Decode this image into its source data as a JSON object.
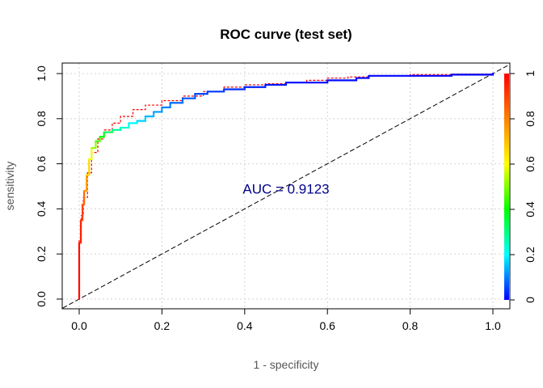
{
  "chart_data": {
    "type": "line",
    "title": "ROC curve (test set)",
    "xlabel": "1 - specificity",
    "ylabel": "sensitivity",
    "xlim": [
      0,
      1
    ],
    "ylim": [
      0,
      1
    ],
    "x_ticks": [
      "0.0",
      "0.2",
      "0.4",
      "0.6",
      "0.8",
      "1.0"
    ],
    "y_ticks": [
      "0.0",
      "0.2",
      "0.4",
      "0.6",
      "0.8",
      "1.0"
    ],
    "grid": true,
    "annotation": {
      "text": "AUC = 0.9123",
      "x": 0.5,
      "y": 0.49,
      "color": "#00008B"
    },
    "colorbar": {
      "ticks": [
        "0",
        "0.2",
        "0.4",
        "0.6",
        "0.8",
        "1"
      ],
      "placement": "right",
      "colors": [
        "#0000FF",
        "#00FFFF",
        "#00FF00",
        "#FFFF00",
        "#FF8000",
        "#FF0000"
      ]
    },
    "series": [
      {
        "style": "colored-threshold",
        "points": [
          [
            0.0,
            0.0,
            1.0
          ],
          [
            0.0,
            0.25,
            0.97
          ],
          [
            0.004,
            0.35,
            0.93
          ],
          [
            0.008,
            0.42,
            0.88
          ],
          [
            0.012,
            0.48,
            0.8
          ],
          [
            0.018,
            0.55,
            0.72
          ],
          [
            0.024,
            0.62,
            0.62
          ],
          [
            0.03,
            0.67,
            0.55
          ],
          [
            0.04,
            0.7,
            0.48
          ],
          [
            0.05,
            0.72,
            0.42
          ],
          [
            0.06,
            0.74,
            0.36
          ],
          [
            0.08,
            0.75,
            0.3
          ],
          [
            0.1,
            0.76,
            0.25
          ],
          [
            0.12,
            0.78,
            0.21
          ],
          [
            0.14,
            0.79,
            0.18
          ],
          [
            0.16,
            0.81,
            0.15
          ],
          [
            0.18,
            0.83,
            0.13
          ],
          [
            0.2,
            0.85,
            0.11
          ],
          [
            0.22,
            0.87,
            0.09
          ],
          [
            0.25,
            0.89,
            0.08
          ],
          [
            0.28,
            0.91,
            0.06
          ],
          [
            0.31,
            0.92,
            0.05
          ],
          [
            0.35,
            0.93,
            0.04
          ],
          [
            0.4,
            0.94,
            0.03
          ],
          [
            0.45,
            0.95,
            0.02
          ],
          [
            0.5,
            0.96,
            0.02
          ],
          [
            0.55,
            0.96,
            0.015
          ],
          [
            0.6,
            0.97,
            0.01
          ],
          [
            0.67,
            0.98,
            0.008
          ],
          [
            0.7,
            0.99,
            0.005
          ],
          [
            0.8,
            0.99,
            0.003
          ],
          [
            0.9,
            0.995,
            0.002
          ],
          [
            1.0,
            1.0,
            0.0
          ]
        ]
      },
      {
        "style": "dashed-red",
        "color": "#FF0000",
        "points": [
          [
            0.0,
            0.0
          ],
          [
            0.0,
            0.26
          ],
          [
            0.005,
            0.37
          ],
          [
            0.01,
            0.45
          ],
          [
            0.02,
            0.56
          ],
          [
            0.03,
            0.65
          ],
          [
            0.045,
            0.71
          ],
          [
            0.06,
            0.75
          ],
          [
            0.08,
            0.78
          ],
          [
            0.1,
            0.81
          ],
          [
            0.13,
            0.84
          ],
          [
            0.16,
            0.86
          ],
          [
            0.2,
            0.88
          ],
          [
            0.25,
            0.9
          ],
          [
            0.3,
            0.92
          ],
          [
            0.35,
            0.94
          ],
          [
            0.4,
            0.95
          ],
          [
            0.45,
            0.955
          ],
          [
            0.5,
            0.96
          ],
          [
            0.55,
            0.97
          ],
          [
            0.6,
            0.98
          ],
          [
            0.65,
            0.985
          ],
          [
            0.7,
            0.99
          ],
          [
            0.8,
            0.995
          ],
          [
            0.9,
            0.998
          ],
          [
            1.0,
            1.0
          ]
        ]
      },
      {
        "style": "diagonal",
        "color": "#000000",
        "points": [
          [
            -0.04,
            -0.04
          ],
          [
            1.04,
            1.04
          ]
        ]
      }
    ]
  }
}
